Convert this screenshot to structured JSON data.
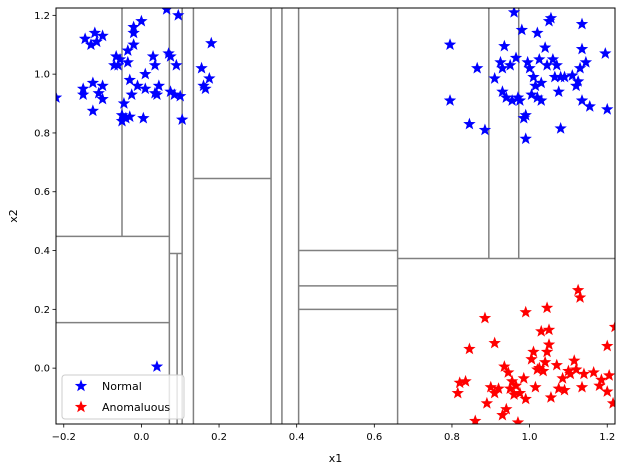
{
  "chart_data": {
    "type": "scatter",
    "title": "",
    "xlabel": "x1",
    "ylabel": "x2",
    "xlim": [
      -0.22,
      1.22
    ],
    "ylim": [
      -0.19,
      1.225
    ],
    "xticks": [
      -0.2,
      0.0,
      0.2,
      0.4,
      0.6,
      0.8,
      1.0,
      1.2
    ],
    "xtick_labels": [
      "−0.2",
      "0.0",
      "0.2",
      "0.4",
      "0.6",
      "0.8",
      "1.0",
      "1.2"
    ],
    "yticks": [
      0.0,
      0.2,
      0.4,
      0.6,
      0.8,
      1.0,
      1.2
    ],
    "ytick_labels": [
      "0.0",
      "0.2",
      "0.4",
      "0.6",
      "0.8",
      "1.0",
      "1.2"
    ],
    "grid": false,
    "legend": {
      "placement": "lower-left",
      "entries": [
        {
          "label": "Normal",
          "color": "#0000ff",
          "marker": "star"
        },
        {
          "label": "Anomaluous",
          "color": "#ff0000",
          "marker": "star"
        }
      ]
    },
    "partition_color": "#808080",
    "partition_lines": [
      {
        "orientation": "vertical",
        "x": 0.072,
        "y": [
          -0.19,
          1.225
        ]
      },
      {
        "orientation": "vertical",
        "x": 0.362,
        "y": [
          -0.19,
          1.225
        ]
      },
      {
        "orientation": "vertical",
        "x": 0.66,
        "y": [
          -0.19,
          1.225
        ]
      },
      {
        "orientation": "horizontal",
        "y": 0.448,
        "x": [
          -0.22,
          0.072
        ]
      },
      {
        "orientation": "horizontal",
        "y": 0.155,
        "x": [
          -0.22,
          0.072
        ]
      },
      {
        "orientation": "vertical",
        "x": -0.05,
        "y": [
          0.448,
          1.225
        ]
      },
      {
        "orientation": "vertical",
        "x": 0.105,
        "y": [
          -0.19,
          1.225
        ]
      },
      {
        "orientation": "horizontal",
        "y": 0.39,
        "x": [
          0.072,
          0.105
        ]
      },
      {
        "orientation": "vertical",
        "x": 0.092,
        "y": [
          -0.19,
          0.39
        ]
      },
      {
        "orientation": "vertical",
        "x": 0.134,
        "y": [
          -0.19,
          1.225
        ]
      },
      {
        "orientation": "horizontal",
        "y": 0.645,
        "x": [
          0.134,
          0.334
        ]
      },
      {
        "orientation": "vertical",
        "x": 0.334,
        "y": [
          -0.19,
          1.225
        ]
      },
      {
        "orientation": "vertical",
        "x": 0.405,
        "y": [
          -0.19,
          1.225
        ]
      },
      {
        "orientation": "horizontal",
        "y": 0.4,
        "x": [
          0.405,
          0.66
        ]
      },
      {
        "orientation": "horizontal",
        "y": 0.28,
        "x": [
          0.405,
          0.66
        ]
      },
      {
        "orientation": "horizontal",
        "y": 0.2,
        "x": [
          0.405,
          0.66
        ]
      },
      {
        "orientation": "horizontal",
        "y": 0.373,
        "x": [
          0.66,
          1.22
        ]
      },
      {
        "orientation": "vertical",
        "x": 0.895,
        "y": [
          0.373,
          1.225
        ]
      },
      {
        "orientation": "vertical",
        "x": 0.972,
        "y": [
          0.373,
          1.225
        ]
      }
    ],
    "series": [
      {
        "name": "Normal",
        "color": "#0000ff",
        "points": [
          [
            -0.22,
            0.92
          ],
          [
            -0.145,
            1.12
          ],
          [
            -0.13,
            1.1
          ],
          [
            -0.12,
            1.14
          ],
          [
            -0.115,
            1.11
          ],
          [
            -0.1,
            1.13
          ],
          [
            -0.15,
            0.95
          ],
          [
            -0.15,
            0.93
          ],
          [
            -0.125,
            0.97
          ],
          [
            -0.125,
            0.875
          ],
          [
            -0.11,
            0.935
          ],
          [
            -0.1,
            0.96
          ],
          [
            -0.1,
            0.915
          ],
          [
            -0.07,
            1.03
          ],
          [
            -0.065,
            1.06
          ],
          [
            -0.06,
            1.03
          ],
          [
            -0.055,
            1.05
          ],
          [
            -0.05,
            0.84
          ],
          [
            -0.05,
            0.86
          ],
          [
            -0.045,
            0.9
          ],
          [
            -0.04,
            0.85
          ],
          [
            -0.035,
            1.04
          ],
          [
            -0.035,
            1.08
          ],
          [
            -0.03,
            0.855
          ],
          [
            -0.03,
            0.98
          ],
          [
            -0.025,
            0.93
          ],
          [
            -0.02,
            1.14
          ],
          [
            -0.02,
            1.1
          ],
          [
            -0.02,
            1.16
          ],
          [
            -0.01,
            0.96
          ],
          [
            0.0,
            1.18
          ],
          [
            0.005,
            0.85
          ],
          [
            0.01,
            1.0
          ],
          [
            0.01,
            0.95
          ],
          [
            0.03,
            1.06
          ],
          [
            0.035,
            1.03
          ],
          [
            0.035,
            0.935
          ],
          [
            0.04,
            0.93
          ],
          [
            0.045,
            0.96
          ],
          [
            0.065,
            1.22
          ],
          [
            0.07,
            1.07
          ],
          [
            0.075,
            1.06
          ],
          [
            0.075,
            0.94
          ],
          [
            0.085,
            0.93
          ],
          [
            0.09,
            1.03
          ],
          [
            0.095,
            1.2
          ],
          [
            0.1,
            0.925
          ],
          [
            0.105,
            0.845
          ],
          [
            0.155,
            1.02
          ],
          [
            0.16,
            0.96
          ],
          [
            0.165,
            0.95
          ],
          [
            0.175,
            0.985
          ],
          [
            0.18,
            1.105
          ],
          [
            0.04,
            0.005
          ],
          [
            0.795,
            1.1
          ],
          [
            0.795,
            0.91
          ],
          [
            0.845,
            0.83
          ],
          [
            0.865,
            1.02
          ],
          [
            0.885,
            0.81
          ],
          [
            0.91,
            0.985
          ],
          [
            0.925,
            1.04
          ],
          [
            0.93,
            0.94
          ],
          [
            0.93,
            1.02
          ],
          [
            0.935,
            1.095
          ],
          [
            0.94,
            0.92
          ],
          [
            0.95,
            1.03
          ],
          [
            0.955,
            0.91
          ],
          [
            0.96,
            1.21
          ],
          [
            0.965,
            1.055
          ],
          [
            0.97,
            0.92
          ],
          [
            0.975,
            0.91
          ],
          [
            0.98,
            1.15
          ],
          [
            0.985,
            0.85
          ],
          [
            0.99,
            0.86
          ],
          [
            0.99,
            0.78
          ],
          [
            0.995,
            1.04
          ],
          [
            1.0,
            1.02
          ],
          [
            1.005,
            0.93
          ],
          [
            1.01,
            0.99
          ],
          [
            1.015,
            0.96
          ],
          [
            1.02,
            1.14
          ],
          [
            1.02,
            0.92
          ],
          [
            1.025,
            1.05
          ],
          [
            1.03,
            0.97
          ],
          [
            1.03,
            0.91
          ],
          [
            1.04,
            1.09
          ],
          [
            1.045,
            1.03
          ],
          [
            1.05,
            1.18
          ],
          [
            1.055,
            1.19
          ],
          [
            1.06,
            1.05
          ],
          [
            1.065,
            0.99
          ],
          [
            1.07,
            1.03
          ],
          [
            1.075,
            0.94
          ],
          [
            1.08,
            0.815
          ],
          [
            1.08,
            0.99
          ],
          [
            1.09,
            0.99
          ],
          [
            1.11,
            0.995
          ],
          [
            1.12,
            0.96
          ],
          [
            1.125,
            0.975
          ],
          [
            1.13,
            1.02
          ],
          [
            1.135,
            1.085
          ],
          [
            1.135,
            1.17
          ],
          [
            1.135,
            0.91
          ],
          [
            1.145,
            1.04
          ],
          [
            1.155,
            0.89
          ],
          [
            1.195,
            1.07
          ],
          [
            1.2,
            0.88
          ]
        ]
      },
      {
        "name": "Anomaluous",
        "color": "#ff0000",
        "points": [
          [
            0.815,
            -0.085
          ],
          [
            0.82,
            -0.05
          ],
          [
            0.835,
            -0.045
          ],
          [
            0.845,
            0.065
          ],
          [
            0.86,
            -0.18
          ],
          [
            0.885,
            0.17
          ],
          [
            0.89,
            -0.12
          ],
          [
            0.9,
            -0.065
          ],
          [
            0.91,
            0.085
          ],
          [
            0.91,
            -0.085
          ],
          [
            0.92,
            -0.07
          ],
          [
            0.93,
            -0.16
          ],
          [
            0.935,
            0.005
          ],
          [
            0.94,
            -0.14
          ],
          [
            0.945,
            -0.015
          ],
          [
            0.95,
            -0.07
          ],
          [
            0.955,
            -0.045
          ],
          [
            0.96,
            -0.09
          ],
          [
            0.965,
            -0.06
          ],
          [
            0.97,
            -0.185
          ],
          [
            0.975,
            -0.085
          ],
          [
            0.985,
            -0.035
          ],
          [
            0.99,
            -0.105
          ],
          [
            0.99,
            0.19
          ],
          [
            1.005,
            0.03
          ],
          [
            1.01,
            0.055
          ],
          [
            1.015,
            -0.065
          ],
          [
            1.02,
            -0.005
          ],
          [
            1.025,
            0.0
          ],
          [
            1.03,
            0.125
          ],
          [
            1.035,
            -0.01
          ],
          [
            1.04,
            0.02
          ],
          [
            1.045,
            0.055
          ],
          [
            1.045,
            0.205
          ],
          [
            1.05,
            0.08
          ],
          [
            1.05,
            0.13
          ],
          [
            1.055,
            -0.1
          ],
          [
            1.07,
            0.01
          ],
          [
            1.075,
            -0.07
          ],
          [
            1.085,
            -0.035
          ],
          [
            1.09,
            -0.075
          ],
          [
            1.1,
            -0.01
          ],
          [
            1.105,
            -0.02
          ],
          [
            1.115,
            0.025
          ],
          [
            1.12,
            -0.005
          ],
          [
            1.125,
            0.265
          ],
          [
            1.13,
            0.24
          ],
          [
            1.135,
            -0.065
          ],
          [
            1.14,
            -0.02
          ],
          [
            1.165,
            -0.015
          ],
          [
            1.18,
            -0.06
          ],
          [
            1.185,
            -0.04
          ],
          [
            1.2,
            0.075
          ],
          [
            1.2,
            -0.08
          ],
          [
            1.205,
            -0.025
          ],
          [
            1.215,
            -0.12
          ],
          [
            1.22,
            0.14
          ]
        ]
      }
    ]
  }
}
